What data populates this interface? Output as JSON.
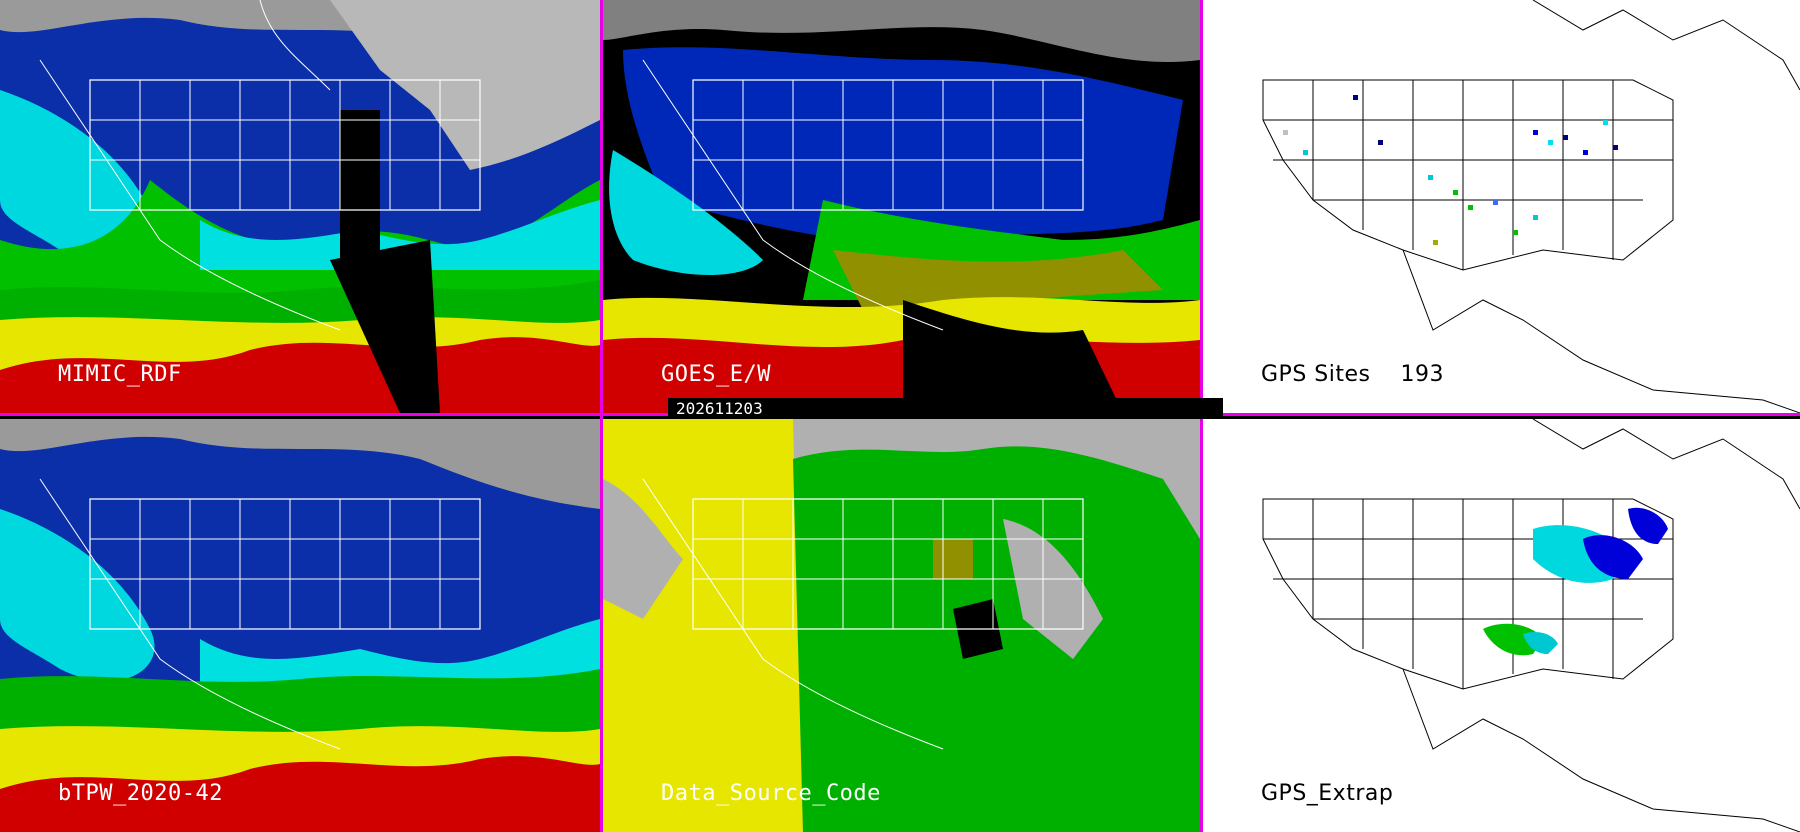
{
  "panels": [
    {
      "id": "mimic",
      "label": "MIMIC_RDF"
    },
    {
      "id": "goes",
      "label": "GOES_E/W"
    },
    {
      "id": "gps",
      "label": "GPS Sites    193"
    },
    {
      "id": "btpw",
      "label": "bTPW_2020-42"
    },
    {
      "id": "dsc",
      "label": "Data_Source_Code"
    },
    {
      "id": "extrap",
      "label": "GPS_Extrap"
    }
  ],
  "timestamp": "202611203",
  "colors": {
    "divider": "#e800e8",
    "tpw_scale": [
      "#c0c0c0",
      "#00007a",
      "#0000d8",
      "#3a6cff",
      "#00e0e8",
      "#00c800",
      "#a8a800",
      "#f0f000",
      "#d00000"
    ],
    "data_source": {
      "microwave": "#e8e800",
      "geo_ir": "#00c000",
      "none": "#b0b0b0",
      "gps": "#000000"
    }
  },
  "icons": [
    "state-boundary-map"
  ]
}
